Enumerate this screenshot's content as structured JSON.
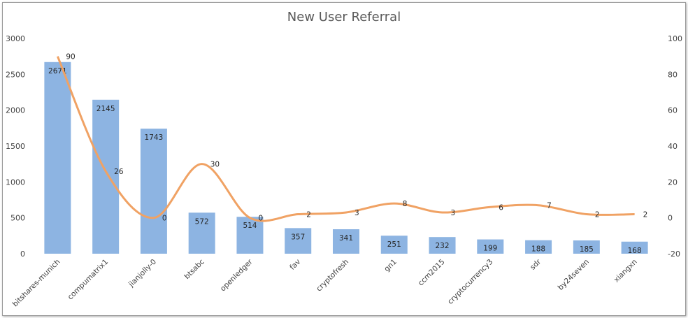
{
  "chart_data": {
    "type": "bar",
    "title": "New User Referral",
    "categories": [
      "bitshares-munich",
      "compumatrix1",
      "jianjolly-0",
      "btsabc",
      "openledger",
      "fav",
      "cryptofresh",
      "gn1",
      "ccm2015",
      "cryptocurrency3",
      "sdr",
      "by24seven",
      "xiangxn"
    ],
    "series": [
      {
        "type": "bar",
        "axis": "primary",
        "values": [
          2671,
          2145,
          1743,
          572,
          514,
          357,
          341,
          251,
          232,
          199,
          188,
          185,
          168
        ],
        "color": "#8db4e2"
      },
      {
        "type": "line",
        "axis": "secondary",
        "smooth": true,
        "values": [
          90,
          26,
          0,
          30,
          0,
          2,
          3,
          8,
          3,
          6,
          7,
          2,
          2
        ],
        "color": "#f0a264"
      }
    ],
    "y_primary": {
      "min": 0,
      "max": 3000,
      "ticks": [
        0,
        500,
        1000,
        1500,
        2000,
        2500,
        3000
      ]
    },
    "y_secondary": {
      "min": -20,
      "max": 100,
      "ticks": [
        -20,
        0,
        20,
        40,
        60,
        80,
        100
      ]
    },
    "grid": false,
    "legend": "none",
    "data_labels": true
  }
}
